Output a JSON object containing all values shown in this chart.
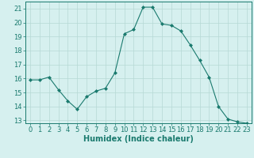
{
  "x": [
    0,
    1,
    2,
    3,
    4,
    5,
    6,
    7,
    8,
    9,
    10,
    11,
    12,
    13,
    14,
    15,
    16,
    17,
    18,
    19,
    20,
    21,
    22,
    23
  ],
  "y": [
    15.9,
    15.9,
    16.1,
    15.2,
    14.4,
    13.8,
    14.7,
    15.1,
    15.3,
    16.4,
    19.2,
    19.5,
    21.1,
    21.1,
    19.9,
    19.8,
    19.4,
    18.4,
    17.3,
    16.1,
    14.0,
    13.1,
    12.9,
    12.8
  ],
  "line_color": "#1a7a6e",
  "marker_color": "#1a7a6e",
  "bg_color": "#d6f0ef",
  "grid_color": "#b5d8d5",
  "xlabel": "Humidex (Indice chaleur)",
  "xlim": [
    -0.5,
    23.5
  ],
  "ylim": [
    12.8,
    21.5
  ],
  "yticks": [
    13,
    14,
    15,
    16,
    17,
    18,
    19,
    20,
    21
  ],
  "xticks": [
    0,
    1,
    2,
    3,
    4,
    5,
    6,
    7,
    8,
    9,
    10,
    11,
    12,
    13,
    14,
    15,
    16,
    17,
    18,
    19,
    20,
    21,
    22,
    23
  ],
  "tick_color": "#1a7a6e",
  "axis_color": "#1a7a6e",
  "label_fontsize": 7,
  "tick_fontsize": 6
}
